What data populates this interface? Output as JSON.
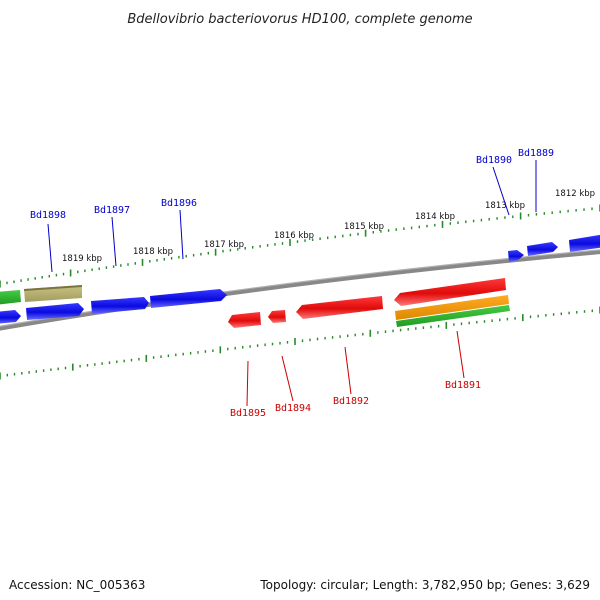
{
  "title": "Bdellovibrio bacteriovorus HD100, complete genome",
  "footer": {
    "accession": "Accession: NC_005363",
    "summary": "Topology: circular; Length: 3,782,950 bp; Genes: 3,629"
  },
  "scale_labels": [
    "1819 kbp",
    "1818 kbp",
    "1817 kbp",
    "1816 kbp",
    "1815 kbp",
    "1814 kbp",
    "1813 kbp",
    "1812 kbp"
  ],
  "genes": [
    {
      "label": "Bd1898",
      "strand": "forward",
      "color": "#0000cc"
    },
    {
      "label": "Bd1897",
      "strand": "forward",
      "color": "#0000cc"
    },
    {
      "label": "Bd1896",
      "strand": "forward",
      "color": "#0000cc"
    },
    {
      "label": "Bd1890",
      "strand": "forward",
      "color": "#0000cc"
    },
    {
      "label": "Bd1889",
      "strand": "forward",
      "color": "#0000cc"
    },
    {
      "label": "Bd1895",
      "strand": "reverse",
      "color": "#cc0000"
    },
    {
      "label": "Bd1894",
      "strand": "reverse",
      "color": "#cc0000"
    },
    {
      "label": "Bd1892",
      "strand": "reverse",
      "color": "#cc0000"
    },
    {
      "label": "Bd1891",
      "strand": "reverse",
      "color": "#cc0000"
    }
  ],
  "colors": {
    "forward_gene": "#1111ee",
    "reverse_gene": "#ee1111",
    "backbone": "#888888",
    "scale_ticks": "#2a8a2a",
    "other_feature_green": "#33bb33",
    "other_feature_orange": "#ee9911",
    "other_feature_khaki": "#b3ad70"
  }
}
